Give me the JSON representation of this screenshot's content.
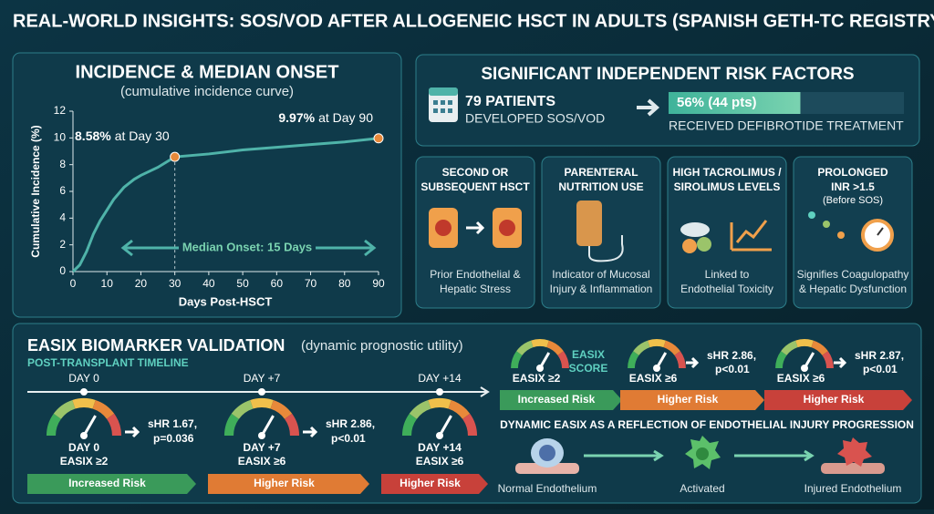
{
  "header": {
    "title": "REAL-WORLD INSIGHTS: SOS/VOD AFTER ALLOGENEIC HSCT IN ADULTS (SPANISH GETH-TC REGISTRY)"
  },
  "chart_data": {
    "type": "line",
    "title": "INCIDENCE & MEDIAN ONSET",
    "subtitle": "(cumulative incidence curve)",
    "x": [
      0,
      2,
      4,
      6,
      8,
      10,
      12,
      15,
      18,
      20,
      25,
      30,
      40,
      50,
      60,
      70,
      80,
      90
    ],
    "series": [
      {
        "name": "Cumulative incidence",
        "color": "#4fb3a9",
        "values": [
          0,
          0.5,
          1.5,
          2.8,
          3.8,
          4.6,
          5.4,
          6.3,
          6.9,
          7.2,
          7.8,
          8.58,
          8.8,
          9.1,
          9.3,
          9.5,
          9.7,
          9.97
        ]
      }
    ],
    "xlim": [
      0,
      90
    ],
    "ylim": [
      0,
      12
    ],
    "xticks": [
      0,
      10,
      20,
      30,
      40,
      50,
      60,
      70,
      80,
      90
    ],
    "yticks": [
      0,
      2,
      4,
      6,
      8,
      10,
      12
    ],
    "xlabel": "Days Post-HSCT",
    "ylabel": "Cumulative Incidence (%)",
    "highlights": [
      {
        "x": 30,
        "y": 8.58,
        "label": "8.58%",
        "text": "at Day 30"
      },
      {
        "x": 90,
        "y": 9.97,
        "label": "9.97%",
        "text": "at Day 90"
      }
    ],
    "annotation": "Median Onset: 15 Days"
  },
  "risk_factors": {
    "title": "SIGNIFICANT INDEPENDENT RISK FACTORS",
    "patients": "79 PATIENTS",
    "patients_text": "DEVELOPED SOS/VOD",
    "treatment": {
      "percent": 56,
      "label": "56% (44 pts)",
      "text": "RECEIVED DEFIBROTIDE TREATMENT"
    },
    "cards": [
      {
        "title": [
          "SECOND OR",
          "SUBSEQUENT HSCT"
        ],
        "description": [
          "Prior Endothelial &",
          "Hepatic Stress"
        ]
      },
      {
        "title": [
          "PARENTERAL",
          "NUTRITION USE"
        ],
        "description": [
          "Indicator of Mucosal",
          "Injury & Inflammation"
        ]
      },
      {
        "title": [
          "HIGH TACROLIMUS /",
          "SIROLIMUS LEVELS"
        ],
        "description": [
          "Linked to",
          "Endothelial Toxicity"
        ]
      },
      {
        "title": [
          "PROLONGED",
          "INR >1.5"
        ],
        "subtitle": "(Before SOS)",
        "description": [
          "Signifies Coagulopathy",
          "& Hepatic Dysfunction"
        ]
      }
    ]
  },
  "easix": {
    "title": "EASIX BIOMARKER VALIDATION",
    "subtitle": "(dynamic prognostic utility)",
    "timeline_label": "POST-TRANSPLANT TIMELINE",
    "timeline": [
      {
        "day": "DAY 0",
        "gauge_day": "DAY 0",
        "threshold": "EASIX ≥2",
        "hr": "sHR 1.67,",
        "p": "p=0.036",
        "risk": "Increased Risk"
      },
      {
        "day": "DAY +7",
        "gauge_day": "DAY +7",
        "threshold": "EASIX ≥6",
        "hr": "sHR 2.86,",
        "p": "p<0.01",
        "risk": "Higher Risk"
      },
      {
        "day": "DAY +14",
        "gauge_day": "DAY +14",
        "threshold": "EASIX ≥6",
        "risk": "Higher Risk"
      }
    ],
    "score_label": [
      "EASIX",
      "SCORE"
    ],
    "scores": [
      {
        "threshold": "EASIX ≥2",
        "risk": "Increased Risk"
      },
      {
        "threshold": "EASIX ≥6",
        "hr": "sHR 2.86,",
        "p": "p<0.01",
        "risk": "Higher Risk"
      },
      {
        "threshold": "EASIX ≥6",
        "hr": "sHR 2.87,",
        "p": "p<0.01",
        "risk": "Higher Risk"
      }
    ],
    "progression_title": "DYNAMIC EASIX AS A REFLECTION OF ENDOTHELIAL INJURY PROGRESSION",
    "cells": [
      "Normal Endothelium",
      "Activated",
      "Injured Endothelium"
    ]
  }
}
